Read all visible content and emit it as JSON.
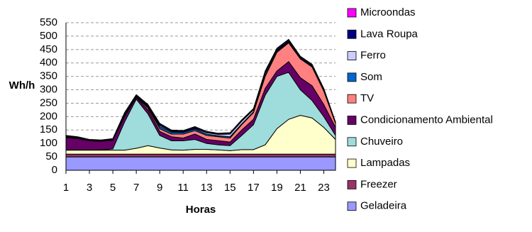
{
  "chart_data": {
    "type": "stacked-area",
    "x_label": "Horas",
    "y_label": "Wh/h",
    "x": [
      1,
      2,
      3,
      4,
      5,
      6,
      7,
      8,
      9,
      10,
      11,
      12,
      13,
      14,
      15,
      16,
      17,
      18,
      19,
      20,
      21,
      22,
      23,
      24
    ],
    "xlim": [
      1,
      24
    ],
    "xticks": [
      1,
      3,
      5,
      7,
      9,
      11,
      13,
      15,
      17,
      19,
      21,
      23
    ],
    "ylim": [
      0,
      550
    ],
    "yticks": [
      0,
      50,
      100,
      150,
      200,
      250,
      300,
      350,
      400,
      450,
      500,
      550
    ],
    "grid": true,
    "legend": "right",
    "series": [
      {
        "name": "Geladeira",
        "color": "#9999ff",
        "values": [
          50,
          50,
          50,
          50,
          50,
          50,
          50,
          50,
          50,
          50,
          50,
          50,
          50,
          50,
          50,
          50,
          50,
          50,
          50,
          50,
          50,
          50,
          50,
          50
        ]
      },
      {
        "name": "Freezer",
        "color": "#993366",
        "values": [
          10,
          10,
          10,
          10,
          10,
          10,
          10,
          10,
          10,
          10,
          10,
          10,
          10,
          10,
          10,
          10,
          10,
          10,
          10,
          10,
          10,
          10,
          10,
          10
        ]
      },
      {
        "name": "Lampadas",
        "color": "#ffffcc",
        "values": [
          15,
          15,
          15,
          15,
          15,
          15,
          22,
          32,
          23,
          16,
          15,
          18,
          18,
          16,
          13,
          17,
          17,
          35,
          95,
          130,
          145,
          135,
          100,
          55
        ]
      },
      {
        "name": "Chuveiro",
        "color": "#9fdcdc",
        "values": [
          1,
          1,
          1,
          1,
          5,
          105,
          183,
          118,
          47,
          34,
          35,
          37,
          22,
          19,
          19,
          53,
          93,
          185,
          195,
          175,
          95,
          65,
          40,
          15
        ]
      },
      {
        "name": "Condicionamento Ambiental",
        "color": "#660066",
        "values": [
          46,
          42,
          34,
          32,
          32,
          20,
          7,
          15,
          15,
          15,
          10,
          20,
          15,
          15,
          13,
          20,
          20,
          25,
          20,
          40,
          45,
          55,
          45,
          30
        ]
      },
      {
        "name": "TV",
        "color": "#ff8080",
        "values": [
          2,
          2,
          2,
          2,
          2,
          5,
          3,
          7,
          10,
          10,
          15,
          13,
          15,
          15,
          15,
          20,
          25,
          45,
          70,
          70,
          70,
          70,
          50,
          15
        ]
      },
      {
        "name": "Som",
        "color": "#0066cc",
        "values": [
          1,
          1,
          1,
          1,
          1,
          2,
          1,
          3,
          8,
          7,
          6,
          6,
          5,
          4,
          5,
          3,
          3,
          3,
          3,
          3,
          2,
          2,
          2,
          1
        ]
      },
      {
        "name": "Ferro",
        "color": "#ccccff",
        "values": [
          1,
          1,
          0,
          0,
          1,
          3,
          1,
          3,
          5,
          3,
          2,
          3,
          5,
          5,
          10,
          10,
          7,
          8,
          4,
          3,
          2,
          2,
          2,
          1
        ]
      },
      {
        "name": "Lava Roupa",
        "color": "#000080",
        "values": [
          3,
          2,
          1,
          1,
          1,
          4,
          4,
          6,
          6,
          4,
          4,
          5,
          4,
          3,
          4,
          4,
          4,
          8,
          7,
          6,
          5,
          5,
          5,
          2
        ]
      },
      {
        "name": "Microondas",
        "color": "#ff00ff",
        "values": [
          1,
          1,
          1,
          1,
          1,
          1,
          1,
          1,
          1,
          1,
          1,
          1,
          1,
          1,
          1,
          1,
          1,
          1,
          1,
          1,
          1,
          1,
          1,
          1
        ]
      }
    ]
  }
}
